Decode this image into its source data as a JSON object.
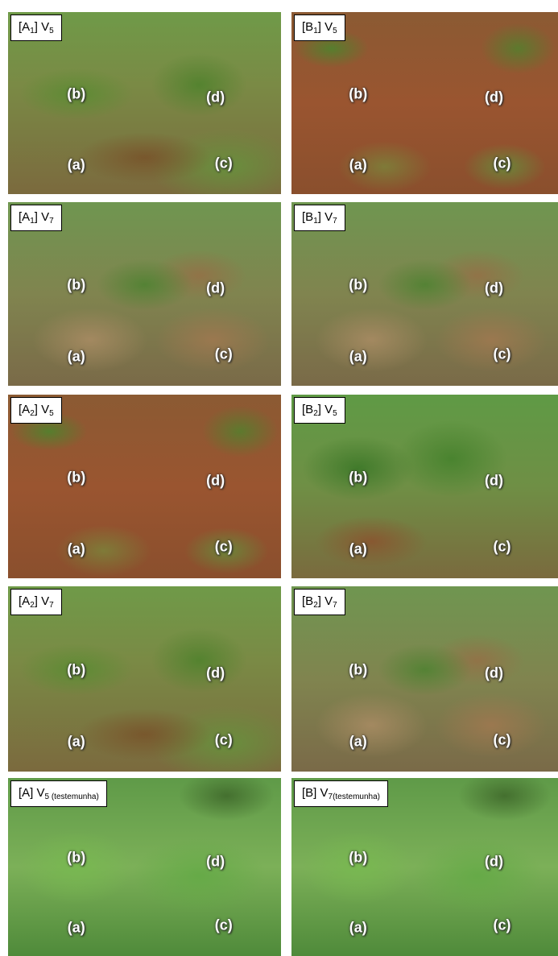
{
  "panels": [
    {
      "label": [
        "[A",
        "1",
        "] V",
        "5"
      ],
      "letters": [
        "(b)",
        "(d)",
        "(a)",
        "(c)"
      ]
    },
    {
      "label": [
        "[B",
        "1",
        "] V",
        "5"
      ],
      "letters": [
        "(b)",
        "(d)",
        "(a)",
        "(c)"
      ]
    },
    {
      "label": [
        "[A",
        "1",
        "] V",
        "7"
      ],
      "letters": [
        "(b)",
        "(d)",
        "(a)",
        "(c)"
      ]
    },
    {
      "label": [
        "[B",
        "1",
        "] V",
        "7"
      ],
      "letters": [
        "(b)",
        "(d)",
        "(a)",
        "(c)"
      ]
    },
    {
      "label": [
        "[A",
        "2",
        "] V",
        "5"
      ],
      "letters": [
        "(b)",
        "(d)",
        "(a)",
        "(c)"
      ]
    },
    {
      "label": [
        "[B",
        "2",
        "] V",
        "5"
      ],
      "letters": [
        "(b)",
        "(d)",
        "(a)",
        "(c)"
      ]
    },
    {
      "label": [
        "[A",
        "2",
        "] V",
        "7"
      ],
      "letters": [
        "(b)",
        "(d)",
        "(a)",
        "(c)"
      ]
    },
    {
      "label": [
        "[B",
        "2",
        "] V",
        "7"
      ],
      "letters": [
        "(b)",
        "(d)",
        "(a)",
        "(c)"
      ]
    },
    {
      "label": [
        "[A] V",
        "5 (testemunha)"
      ],
      "letters": [
        "(b)",
        "(d)",
        "(a)",
        "(c)"
      ]
    },
    {
      "label": [
        "[B] V",
        "7(testemunha)"
      ],
      "letters": [
        "(b)",
        "(d)",
        "(a)",
        "(c)"
      ]
    }
  ]
}
